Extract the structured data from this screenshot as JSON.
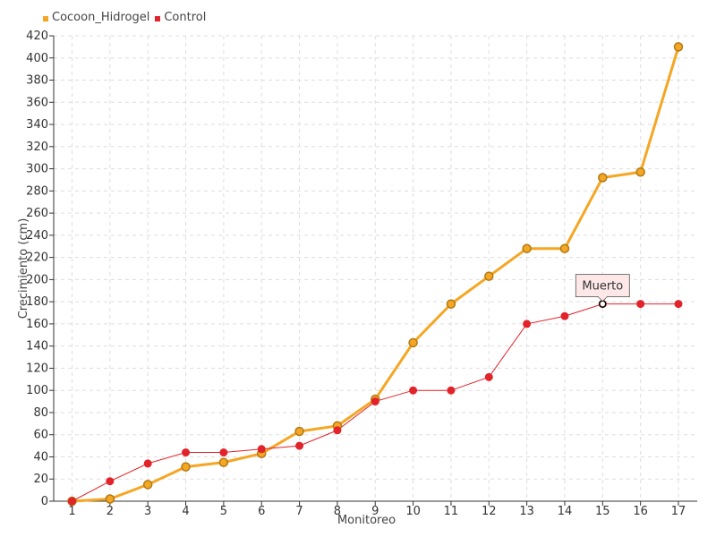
{
  "chart_data": {
    "type": "line",
    "xlabel": "Monitoreo",
    "ylabel": "Crecimiento (cm)",
    "x": [
      1,
      2,
      3,
      4,
      5,
      6,
      7,
      8,
      9,
      10,
      11,
      12,
      13,
      14,
      15,
      16,
      17
    ],
    "ylim": [
      0,
      420
    ],
    "ytick_step": 20,
    "grid": true,
    "legend_position": "top-left",
    "series": [
      {
        "name": "Cocoon_Hidrogel",
        "color": "#f5a623",
        "values": [
          0,
          2,
          15,
          31,
          35,
          43,
          63,
          68,
          92,
          143,
          178,
          203,
          228,
          228,
          292,
          297,
          410
        ]
      },
      {
        "name": "Control",
        "color": "#e2232a",
        "values": [
          0,
          18,
          34,
          44,
          44,
          47,
          50,
          64,
          90,
          100,
          100,
          112,
          160,
          167,
          178,
          178,
          178
        ]
      }
    ],
    "annotations": [
      {
        "text": "Muerto",
        "series": "Control",
        "x": 15,
        "y": 178
      }
    ]
  }
}
